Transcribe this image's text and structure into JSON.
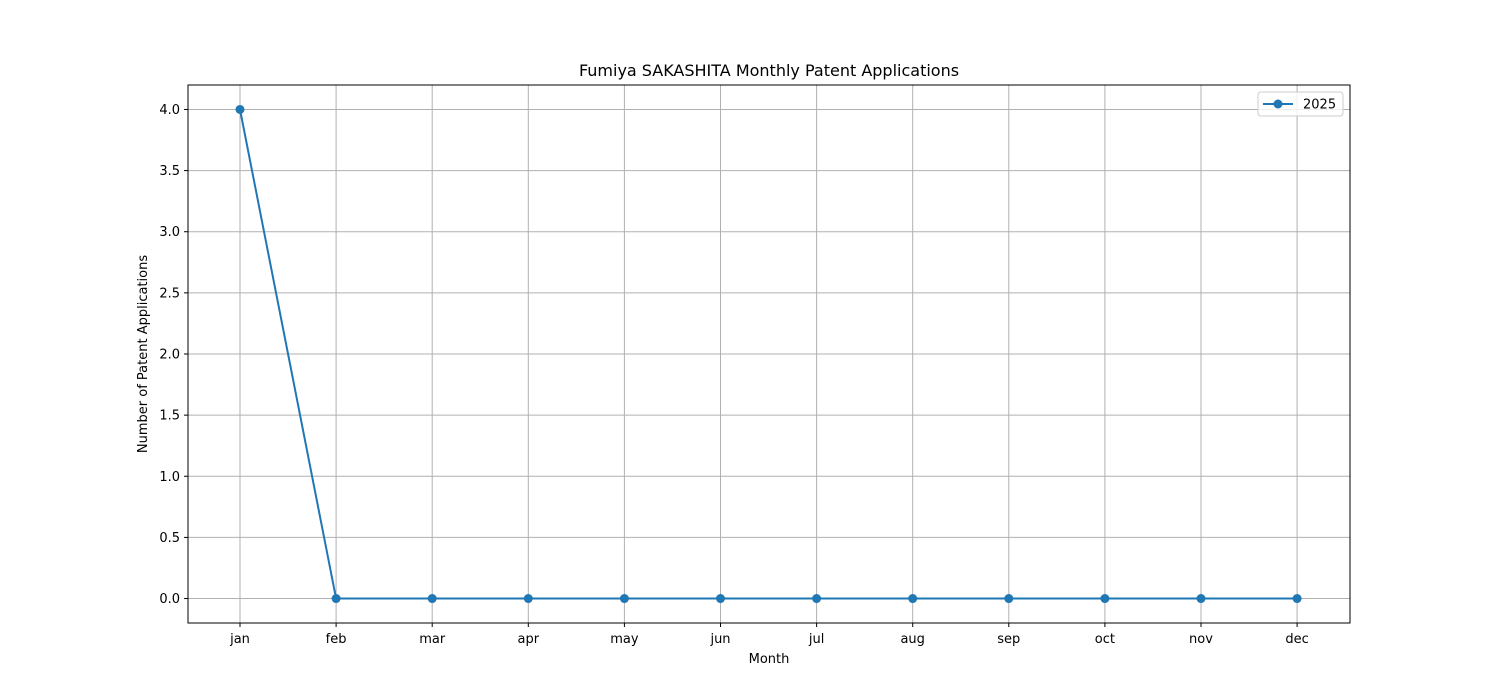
{
  "chart_data": {
    "type": "line",
    "title": "Fumiya SAKASHITA Monthly Patent Applications",
    "xlabel": "Month",
    "ylabel": "Number of Patent Applications",
    "categories": [
      "jan",
      "feb",
      "mar",
      "apr",
      "may",
      "jun",
      "jul",
      "aug",
      "sep",
      "oct",
      "nov",
      "dec"
    ],
    "y_ticks": [
      "0.0",
      "0.5",
      "1.0",
      "1.5",
      "2.0",
      "2.5",
      "3.0",
      "3.5",
      "4.0"
    ],
    "ylim": [
      -0.2,
      4.2
    ],
    "grid": true,
    "legend_position": "top-right",
    "series": [
      {
        "name": "2025",
        "color": "#1f77b4",
        "marker": "circle",
        "values": [
          4,
          0,
          0,
          0,
          0,
          0,
          0,
          0,
          0,
          0,
          0,
          0
        ]
      }
    ]
  }
}
